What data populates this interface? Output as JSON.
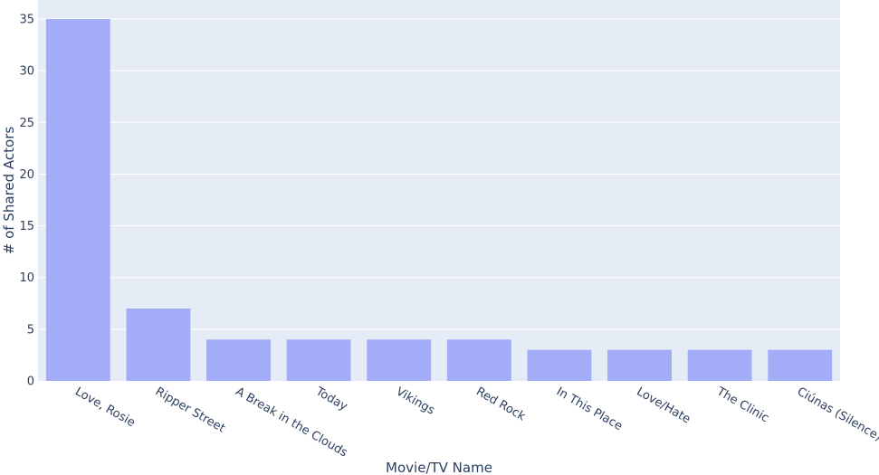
{
  "chart_data": {
    "type": "bar",
    "title": "",
    "xlabel": "Movie/TV Name",
    "ylabel": "# of Shared Actors",
    "categories": [
      "Love, Rosie",
      "Ripper Street",
      "A Break in the Clouds",
      "Today",
      "Vikings",
      "Red Rock",
      "In This Place",
      "Love/Hate",
      "The Clinic",
      "Ciúnas (Silence)"
    ],
    "values": [
      35,
      7,
      4,
      4,
      4,
      4,
      3,
      3,
      3,
      3
    ],
    "ylim": [
      0,
      36.84
    ],
    "yticks": [
      0,
      5,
      10,
      15,
      20,
      25,
      30,
      35
    ],
    "grid": true,
    "legend": "none",
    "colors": {
      "bar": "#a3acf7",
      "plot_bg": "#e5ecf6",
      "grid": "#ffffff",
      "text": "#2a3f5f"
    }
  }
}
